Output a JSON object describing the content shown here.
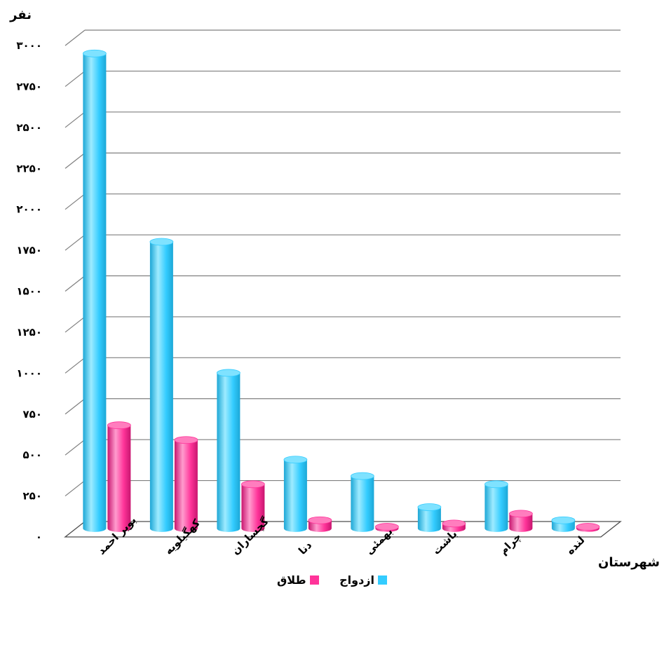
{
  "chart_data": {
    "type": "bar",
    "ylabel": "نفر",
    "xlabel": "شهرستان",
    "ylim": [
      0,
      3000
    ],
    "yticks": [
      {
        "value": 0,
        "label": "۰"
      },
      {
        "value": 250,
        "label": "۲۵۰"
      },
      {
        "value": 500,
        "label": "۵۰۰"
      },
      {
        "value": 750,
        "label": "۷۵۰"
      },
      {
        "value": 1000,
        "label": "۱۰۰۰"
      },
      {
        "value": 1250,
        "label": "۱۲۵۰"
      },
      {
        "value": 1500,
        "label": "۱۵۰۰"
      },
      {
        "value": 1750,
        "label": "۱۷۵۰"
      },
      {
        "value": 2000,
        "label": "۲۰۰۰"
      },
      {
        "value": 2250,
        "label": "۲۲۵۰"
      },
      {
        "value": 2500,
        "label": "۲۵۰۰"
      },
      {
        "value": 2750,
        "label": "۲۷۵۰"
      },
      {
        "value": 3000,
        "label": "۳۰۰۰"
      }
    ],
    "categories": [
      "بویر احمد",
      "کهگیلویه",
      "گچساران",
      "دنا",
      "بهمئی",
      "باشت",
      "چرام",
      "لنده"
    ],
    "series": [
      {
        "name": "ازدواج",
        "color": "#33CCFF",
        "values": [
          2900,
          1750,
          950,
          420,
          320,
          130,
          270,
          50
        ]
      },
      {
        "name": "طلاق",
        "color": "#FF3399",
        "values": [
          630,
          540,
          270,
          50,
          10,
          30,
          90,
          10
        ]
      }
    ],
    "grid": true,
    "legend_position": "bottom"
  }
}
